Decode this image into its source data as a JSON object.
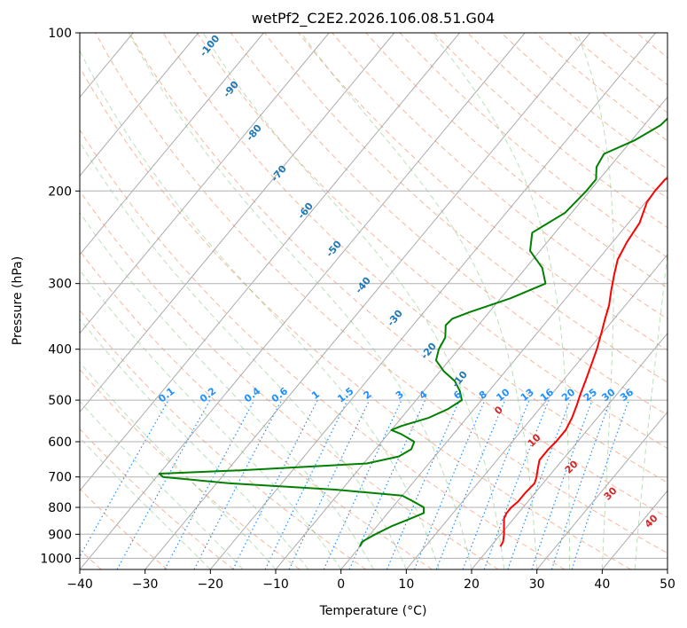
{
  "chart_data": {
    "type": "line",
    "title": "wetPf2_C2E2.2026.106.08.51.G04",
    "xlabel": "Temperature (°C)",
    "ylabel": "Pressure (hPa)",
    "xlim": [
      -40,
      50
    ],
    "ylim": [
      1050,
      100
    ],
    "y_scale": "log",
    "grid": true,
    "x_ticks": [
      -40,
      -30,
      -20,
      -10,
      0,
      10,
      20,
      30,
      40,
      50
    ],
    "x_tick_labels": [
      "−40",
      "−30",
      "−20",
      "−10",
      "0",
      "10",
      "20",
      "30",
      "40",
      "50"
    ],
    "y_ticks": [
      100,
      200,
      300,
      400,
      500,
      600,
      700,
      800,
      900,
      1000
    ],
    "y_tick_labels": [
      "100",
      "200",
      "300",
      "400",
      "500",
      "600",
      "700",
      "800",
      "900",
      "1000"
    ],
    "isotherm_labels": [
      "-100",
      "-90",
      "-80",
      "-70",
      "-60",
      "-50",
      "-40",
      "-30",
      "-20",
      "-10"
    ],
    "mixing_ratio_labels": [
      "0.1",
      "0.2",
      "0.4",
      "0.6",
      "1",
      "1.5",
      "2",
      "3",
      "4",
      "6",
      "8",
      "10",
      "13",
      "16",
      "20",
      "25",
      "30",
      "36"
    ],
    "dry_adiabat_labels": [
      "0",
      "10",
      "20",
      "30",
      "40"
    ],
    "series": [
      {
        "color": "#ff0000",
        "pressure": [
          950,
          930,
          900,
          870,
          840,
          820,
          800,
          780,
          750,
          720,
          700,
          680,
          650,
          620,
          600,
          570,
          540,
          510,
          490,
          460,
          430,
          400,
          370,
          350,
          330,
          310,
          290,
          270,
          250,
          230,
          210,
          200,
          190,
          180,
          170,
          160,
          150,
          140,
          130,
          120,
          110,
          100
        ],
        "temperature": [
          21.5,
          21.3,
          20.5,
          19.5,
          18.5,
          18.2,
          18.2,
          18.5,
          18.5,
          18.7,
          18.2,
          17.5,
          16.5,
          16.5,
          16.7,
          16.7,
          16.1,
          15.2,
          14.5,
          13.5,
          12.4,
          11.2,
          9.7,
          8.6,
          7.5,
          6.0,
          4.5,
          3.0,
          2.2,
          1.7,
          0.2,
          0.0,
          0.1,
          2.5,
          6.5,
          9.5,
          10.7,
          10.5,
          10.2,
          10.4,
          11.0,
          11.8
        ]
      },
      {
        "color": "#008000",
        "pressure": [
          950,
          930,
          900,
          870,
          840,
          820,
          800,
          780,
          760,
          740,
          720,
          700,
          690,
          680,
          660,
          640,
          620,
          600,
          580,
          570,
          560,
          540,
          520,
          500,
          480,
          460,
          440,
          420,
          400,
          380,
          360,
          350,
          340,
          320,
          300,
          280,
          260,
          240,
          220,
          200,
          190,
          180,
          170,
          160,
          150,
          140,
          130,
          120,
          110,
          100
        ],
        "temperature": [
          0.0,
          -0.3,
          0.8,
          2.2,
          4.2,
          5.5,
          4.8,
          2.5,
          0.0,
          -11.0,
          -28.0,
          -39.0,
          -40.0,
          -28.0,
          -9.5,
          -5.5,
          -4.5,
          -5.0,
          -8.0,
          -10.0,
          -9.0,
          -5.8,
          -4.0,
          -3.0,
          -4.5,
          -6.5,
          -9.5,
          -12.0,
          -13.0,
          -13.5,
          -15.0,
          -14.8,
          -13.0,
          -8.5,
          -5.0,
          -7.5,
          -11.5,
          -13.5,
          -11.0,
          -10.5,
          -10.5,
          -12.0,
          -12.5,
          -9.5,
          -7.5,
          -7.0,
          -6.5,
          -5.5,
          -3.0,
          0.0
        ]
      }
    ]
  }
}
